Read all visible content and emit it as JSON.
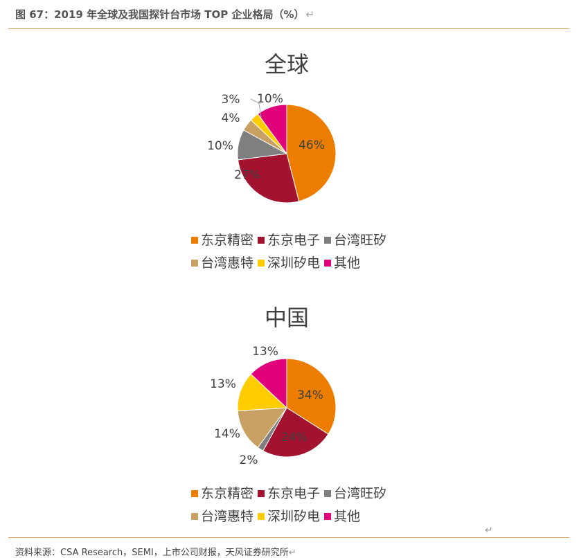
{
  "figure": {
    "title": "图 67：2019 年全球及我国探针台市场 TOP 企业格局（%）",
    "return_mark": "↵",
    "source": "资料来源：CSA Research，SEMI，上市公司财报，天风证券研究所"
  },
  "colors": {
    "东京精密": "#ed7d00",
    "东京电子": "#a3122f",
    "台湾旺矽": "#7f7f7f",
    "台湾惠特": "#c9a063",
    "深圳矽电": "#ffcc00",
    "其他": "#e0007a"
  },
  "chart_data": [
    {
      "type": "pie",
      "title": "全球",
      "categories": [
        "东京精密",
        "东京电子",
        "台湾旺矽",
        "台湾惠特",
        "深圳矽电",
        "其他"
      ],
      "values": [
        46,
        27,
        10,
        4,
        3,
        10
      ],
      "labels": [
        "46%",
        "27%",
        "10%",
        "4%",
        "3%",
        "10%"
      ],
      "legend_rows": [
        [
          "东京精密",
          "东京电子",
          "台湾旺矽"
        ],
        [
          "台湾惠特",
          "深圳矽电",
          "其他"
        ]
      ],
      "legend_position": "bottom"
    },
    {
      "type": "pie",
      "title": "中国",
      "categories": [
        "东京精密",
        "东京电子",
        "台湾旺矽",
        "台湾惠特",
        "深圳矽电",
        "其他"
      ],
      "values": [
        34,
        24,
        2,
        14,
        13,
        13
      ],
      "labels": [
        "34%",
        "24%",
        "2%",
        "14%",
        "13%",
        "13%"
      ],
      "legend_rows": [
        [
          "东京精密",
          "东京电子",
          "台湾旺矽"
        ],
        [
          "台湾惠特",
          "深圳矽电",
          "其他"
        ]
      ],
      "legend_position": "bottom"
    }
  ]
}
